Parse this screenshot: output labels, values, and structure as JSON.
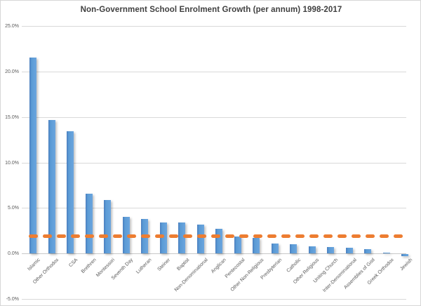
{
  "chart_data": {
    "type": "bar",
    "title": "Non-Government School Enrolment Growth (per annum) 1998-2017",
    "categories": [
      "Islamic",
      "Other Orthodox",
      "CSA",
      "Brethren",
      "Montessori",
      "Seventh Day",
      "Lutheran",
      "Steiner",
      "Baptist",
      "Non-Denominational",
      "Anglican",
      "Pentecostal",
      "Other Non-Religious",
      "Presbyterian",
      "Catholic",
      "Other Religious",
      "Uniting Church",
      "Inter-Denominational",
      "Assemblies of God",
      "Greek Orthodox",
      "Jewish"
    ],
    "values": [
      21.5,
      14.7,
      13.4,
      6.6,
      5.9,
      4.0,
      3.8,
      3.4,
      3.4,
      3.2,
      2.7,
      1.9,
      1.7,
      1.1,
      1.0,
      0.8,
      0.7,
      0.65,
      0.5,
      0.1,
      -0.25
    ],
    "unit": "%",
    "xlabel": "",
    "ylabel": "",
    "ylim": [
      -5,
      25
    ],
    "y_ticks": [
      25,
      20,
      15,
      10,
      5,
      0,
      -5
    ],
    "y_tick_labels": [
      "25.0%",
      "20.0%",
      "15.0%",
      "10.0%",
      "5.0%",
      "0.0%",
      "-5.0%"
    ],
    "grid": true,
    "legend": false,
    "reference_line": {
      "value": 1.9,
      "style": "dashed"
    }
  },
  "colors": {
    "bar": "#5B9BD5",
    "reference": "#ED7D31",
    "grid": "#D9D9D9",
    "title_text": "#3F3F3F",
    "tick_text": "#595959",
    "border": "#D6D6D6",
    "background": "#FFFFFF"
  }
}
